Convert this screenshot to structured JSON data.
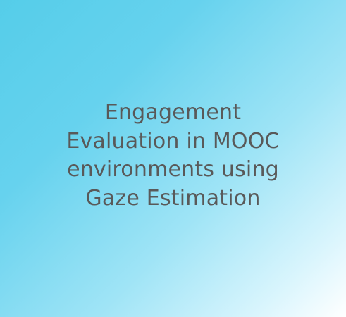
{
  "card": {
    "background_colors": [
      "#55cde9",
      "#9fe4f6",
      "#ffffff"
    ],
    "text_color": "#595959",
    "title_lines": [
      "Engagement",
      "Evaluation in MOOC",
      "environments using",
      "Gaze Estimation"
    ]
  }
}
